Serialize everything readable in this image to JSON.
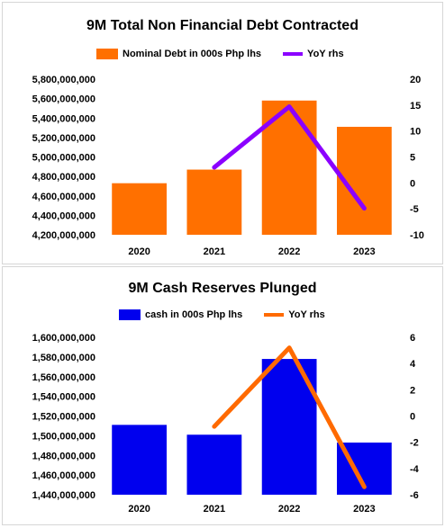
{
  "chart_data": [
    {
      "type": "bar",
      "title": "9M Total Non Financial Debt Contracted",
      "categories": [
        "2020",
        "2021",
        "2022",
        "2023"
      ],
      "series": [
        {
          "name": "Nominal Debt in 000s Php lhs",
          "type": "bar",
          "axis": "left",
          "color": "#ff7000",
          "values": [
            4730000000,
            4870000000,
            5580000000,
            5310000000
          ]
        },
        {
          "name": "YoY rhs",
          "type": "line",
          "axis": "right",
          "color": "#8b00ff",
          "values": [
            null,
            3.0,
            14.7,
            -4.9
          ]
        }
      ],
      "y_left": {
        "min": 4200000000,
        "max": 5800000000,
        "step": 200000000,
        "ticks": [
          "4,200,000,000",
          "4,400,000,000",
          "4,600,000,000",
          "4,800,000,000",
          "5,000,000,000",
          "5,200,000,000",
          "5,400,000,000",
          "5,600,000,000",
          "5,800,000,000"
        ]
      },
      "y_right": {
        "min": -10,
        "max": 20,
        "step": 5,
        "ticks": [
          "-10",
          "-5",
          "0",
          "5",
          "10",
          "15",
          "20"
        ]
      },
      "grid": false,
      "legend": "top"
    },
    {
      "type": "bar",
      "title": "9M Cash Reserves Plunged",
      "categories": [
        "2020",
        "2021",
        "2022",
        "2023"
      ],
      "series": [
        {
          "name": "cash in 000s Php lhs",
          "type": "bar",
          "axis": "left",
          "color": "#0000ee",
          "values": [
            1511000000,
            1501000000,
            1578000000,
            1493000000
          ]
        },
        {
          "name": "YoY rhs",
          "type": "line",
          "axis": "right",
          "color": "#ff6a00",
          "values": [
            null,
            -0.8,
            5.2,
            -5.4
          ]
        }
      ],
      "y_left": {
        "min": 1440000000,
        "max": 1600000000,
        "step": 20000000,
        "ticks": [
          "1,440,000,000",
          "1,460,000,000",
          "1,480,000,000",
          "1,500,000,000",
          "1,520,000,000",
          "1,540,000,000",
          "1,560,000,000",
          "1,580,000,000",
          "1,600,000,000"
        ]
      },
      "y_right": {
        "min": -6,
        "max": 6,
        "step": 2,
        "ticks": [
          "-6",
          "-4",
          "-2",
          "0",
          "2",
          "4",
          "6"
        ]
      },
      "grid": false,
      "legend": "top"
    }
  ]
}
